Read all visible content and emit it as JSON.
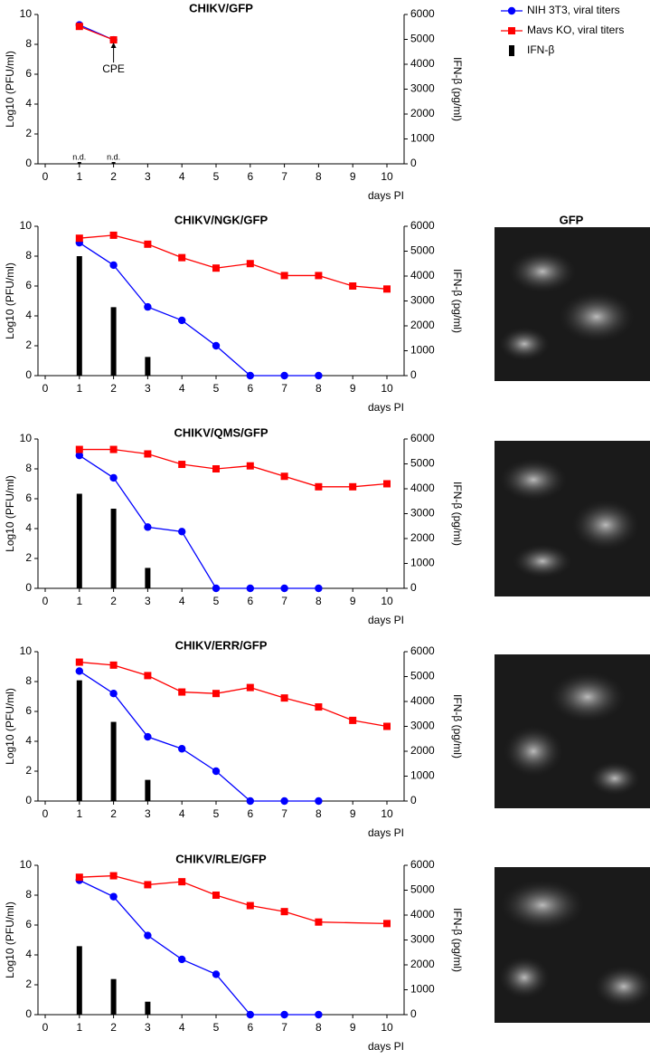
{
  "panel_label": "GFP",
  "chart_data": [
    {
      "type": "line",
      "title": "CHIKV/GFP",
      "xlabel": "days PI",
      "ylabel": "Log10 (PFU/ml)",
      "y2label": "IFN-β (pg/ml)",
      "xlim": [
        0,
        10
      ],
      "xticks": [
        0,
        1,
        2,
        3,
        4,
        5,
        6,
        7,
        8,
        9,
        10
      ],
      "ylim": [
        0,
        10
      ],
      "yticks": [
        0,
        2,
        4,
        6,
        8,
        10
      ],
      "y2lim": [
        0,
        6000
      ],
      "y2ticks": [
        0,
        1000,
        2000,
        3000,
        4000,
        5000,
        6000
      ],
      "series": [
        {
          "name": "NIH 3T3, viral titers",
          "color": "#0000ff",
          "marker": "circle",
          "x": [
            1,
            2
          ],
          "values": [
            9.3,
            8.3
          ]
        },
        {
          "name": "Mavs KO, viral titers",
          "color": "#ff0000",
          "marker": "square",
          "x": [
            1,
            2
          ],
          "values": [
            9.2,
            8.3
          ]
        },
        {
          "name": "IFN-β",
          "color": "#000000",
          "kind": "bar",
          "axis": "y2",
          "x": [
            1,
            2
          ],
          "values": [
            null,
            null
          ],
          "value_labels": [
            "n.d.",
            "n.d."
          ]
        }
      ],
      "annotations": [
        {
          "text": "CPE",
          "x": 2,
          "y": 6.3
        }
      ]
    },
    {
      "type": "line",
      "title": "CHIKV/NGK/GFP",
      "xlabel": "days PI",
      "ylabel": "Log10 (PFU/ml)",
      "y2label": "IFN-β (pg/ml)",
      "xlim": [
        0,
        10
      ],
      "xticks": [
        0,
        1,
        2,
        3,
        4,
        5,
        6,
        7,
        8,
        9,
        10
      ],
      "ylim": [
        0,
        10
      ],
      "yticks": [
        0,
        2,
        4,
        6,
        8,
        10
      ],
      "y2lim": [
        0,
        6000
      ],
      "y2ticks": [
        0,
        1000,
        2000,
        3000,
        4000,
        5000,
        6000
      ],
      "series": [
        {
          "color": "#0000ff",
          "marker": "circle",
          "x": [
            1,
            2,
            3,
            4,
            5,
            6,
            7,
            8
          ],
          "values": [
            8.9,
            7.4,
            4.6,
            3.7,
            2.0,
            0,
            0,
            0
          ]
        },
        {
          "color": "#ff0000",
          "marker": "square",
          "x": [
            1,
            2,
            3,
            4,
            5,
            6,
            7,
            8,
            9,
            10
          ],
          "values": [
            9.2,
            9.4,
            8.8,
            7.9,
            7.2,
            7.5,
            6.7,
            6.7,
            6.0,
            5.8
          ]
        },
        {
          "color": "#000000",
          "kind": "bar",
          "axis": "y2",
          "x": [
            1,
            2,
            3
          ],
          "values": [
            4800,
            2750,
            750
          ]
        }
      ]
    },
    {
      "type": "line",
      "title": "CHIKV/QMS/GFP",
      "xlabel": "days PI",
      "ylabel": "Log10 (PFU/ml)",
      "y2label": "IFN-β (pg/ml)",
      "xlim": [
        0,
        10
      ],
      "xticks": [
        0,
        1,
        2,
        3,
        4,
        5,
        6,
        7,
        8,
        9,
        10
      ],
      "ylim": [
        0,
        10
      ],
      "yticks": [
        0,
        2,
        4,
        6,
        8,
        10
      ],
      "y2lim": [
        0,
        6000
      ],
      "y2ticks": [
        0,
        1000,
        2000,
        3000,
        4000,
        5000,
        6000
      ],
      "series": [
        {
          "color": "#0000ff",
          "marker": "circle",
          "x": [
            1,
            2,
            3,
            4,
            5,
            6,
            7,
            8
          ],
          "values": [
            8.9,
            7.4,
            4.1,
            3.8,
            0,
            0,
            0,
            0
          ]
        },
        {
          "color": "#ff0000",
          "marker": "square",
          "x": [
            1,
            2,
            3,
            4,
            5,
            6,
            7,
            8,
            9,
            10
          ],
          "values": [
            9.3,
            9.3,
            9.0,
            8.3,
            8.0,
            8.2,
            7.5,
            6.8,
            6.8,
            7.0
          ]
        },
        {
          "color": "#000000",
          "kind": "bar",
          "axis": "y2",
          "x": [
            1,
            2,
            3
          ],
          "values": [
            3800,
            3200,
            820
          ]
        }
      ]
    },
    {
      "type": "line",
      "title": "CHIKV/ERR/GFP",
      "xlabel": "days PI",
      "ylabel": "Log10 (PFU/ml)",
      "y2label": "IFN-β (pg/ml)",
      "xlim": [
        0,
        10
      ],
      "xticks": [
        0,
        1,
        2,
        3,
        4,
        5,
        6,
        7,
        8,
        9,
        10
      ],
      "ylim": [
        0,
        10
      ],
      "yticks": [
        0,
        2,
        4,
        6,
        8,
        10
      ],
      "y2lim": [
        0,
        6000
      ],
      "y2ticks": [
        0,
        1000,
        2000,
        3000,
        4000,
        5000,
        6000
      ],
      "series": [
        {
          "color": "#0000ff",
          "marker": "circle",
          "x": [
            1,
            2,
            3,
            4,
            5,
            6,
            7,
            8
          ],
          "values": [
            8.7,
            7.2,
            4.3,
            3.5,
            2.0,
            0,
            0,
            0
          ]
        },
        {
          "color": "#ff0000",
          "marker": "square",
          "x": [
            1,
            2,
            3,
            4,
            5,
            6,
            7,
            8,
            9,
            10
          ],
          "values": [
            9.3,
            9.1,
            8.4,
            7.3,
            7.2,
            7.6,
            6.9,
            6.3,
            5.4,
            5.0
          ]
        },
        {
          "color": "#000000",
          "kind": "bar",
          "axis": "y2",
          "x": [
            1,
            2,
            3
          ],
          "values": [
            4850,
            3180,
            850
          ]
        }
      ]
    },
    {
      "type": "line",
      "title": "CHIKV/RLE/GFP",
      "xlabel": "days PI",
      "ylabel": "Log10 (PFU/ml)",
      "y2label": "IFN-β (pg/ml)",
      "xlim": [
        0,
        10
      ],
      "xticks": [
        0,
        1,
        2,
        3,
        4,
        5,
        6,
        7,
        8,
        9,
        10
      ],
      "ylim": [
        0,
        10
      ],
      "yticks": [
        0,
        2,
        4,
        6,
        8,
        10
      ],
      "y2lim": [
        0,
        6000
      ],
      "y2ticks": [
        0,
        1000,
        2000,
        3000,
        4000,
        5000,
        6000
      ],
      "series": [
        {
          "color": "#0000ff",
          "marker": "circle",
          "x": [
            1,
            2,
            3,
            4,
            5,
            6,
            7,
            8
          ],
          "values": [
            9.0,
            7.9,
            5.3,
            3.7,
            2.7,
            0,
            0,
            0
          ]
        },
        {
          "color": "#ff0000",
          "marker": "square",
          "x": [
            1,
            2,
            3,
            4,
            5,
            6,
            7,
            8,
            10
          ],
          "values": [
            9.2,
            9.3,
            8.7,
            8.9,
            8.0,
            7.3,
            6.9,
            6.2,
            6.1
          ]
        },
        {
          "color": "#000000",
          "kind": "bar",
          "axis": "y2",
          "x": [
            1,
            2,
            3
          ],
          "values": [
            2750,
            1430,
            520
          ]
        }
      ]
    }
  ]
}
